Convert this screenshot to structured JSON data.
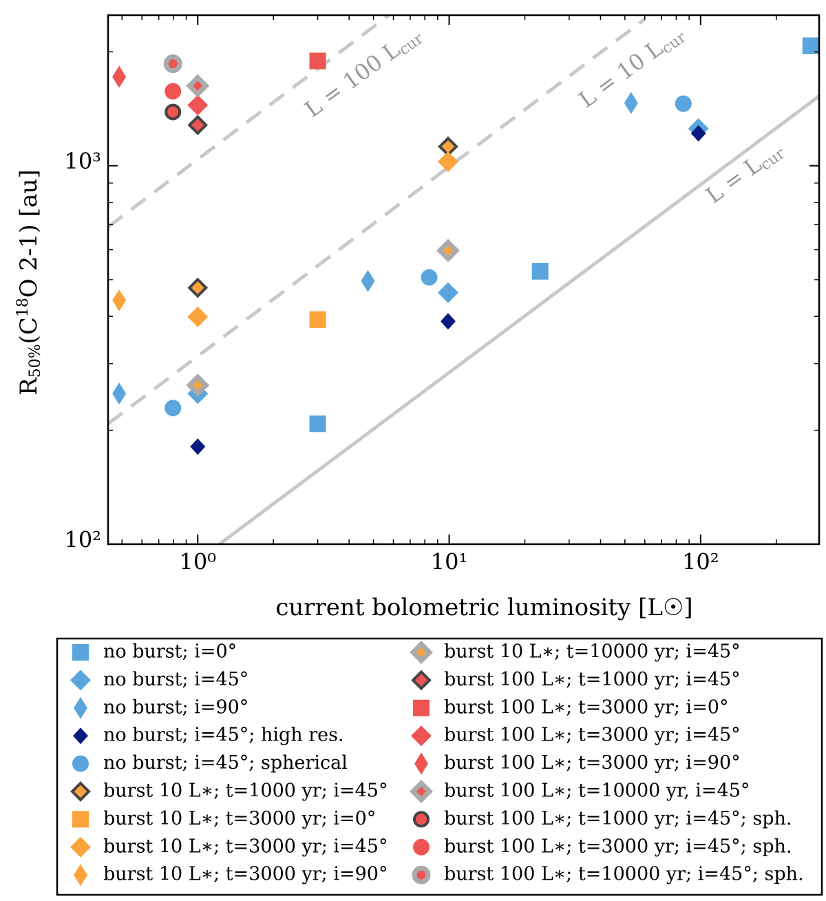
{
  "chart_data": {
    "type": "scatter",
    "xlabel": "current bolometric luminosity [L☉]",
    "ylabel": [
      "R",
      "50%",
      "(C",
      "18",
      "O 2-1) [au]"
    ],
    "xscale": "log",
    "yscale": "log",
    "xlim": [
      0.44,
      296
    ],
    "ylim": [
      100,
      2500
    ],
    "xticks": [
      {
        "value": 1,
        "label": "10⁰"
      },
      {
        "value": 10,
        "label": "10¹"
      },
      {
        "value": 100,
        "label": "10²"
      }
    ],
    "yticks": [
      {
        "value": 100,
        "label": "10²"
      },
      {
        "value": 1000,
        "label": "10³"
      }
    ],
    "legend": "bottom",
    "reference_lines": [
      {
        "label": "L = 100 L",
        "sub": "cur",
        "style": "dashed",
        "color": "#c8c8c8",
        "x": [
          0.44,
          6
        ],
        "values": [
          689,
          2552
        ]
      },
      {
        "label": "L = 10 L",
        "sub": "cur",
        "style": "dashed",
        "color": "#c8c8c8",
        "x": [
          0.44,
          60
        ],
        "values": [
          208,
          2440
        ]
      },
      {
        "label": "L = L",
        "sub": "cur",
        "style": "solid",
        "color": "#c8c8c8",
        "x": [
          1.22,
          296
        ],
        "values": [
          100,
          1528
        ]
      }
    ],
    "series": [
      {
        "name": "no burst; i=0°",
        "marker": "square",
        "color": "#5aa5dd",
        "x": [
          3.0,
          23,
          274
        ],
        "values": [
          208,
          526,
          2075
        ]
      },
      {
        "name": "no burst; i=45°",
        "marker": "diamond",
        "color": "#5aa5dd",
        "x": [
          1,
          9.9,
          98
        ],
        "values": [
          250,
          462,
          1254
        ]
      },
      {
        "name": "no burst; i=90°",
        "marker": "thin_diamond",
        "color": "#5aa5dd",
        "x": [
          0.487,
          4.75,
          52.9
        ],
        "values": [
          250,
          496,
          1465
        ]
      },
      {
        "name": "no burst; i=45°; high res.",
        "marker": "diamond_small",
        "color": "#0b1a80",
        "x": [
          1,
          9.9,
          98
        ],
        "values": [
          181,
          388,
          1218
        ]
      },
      {
        "name": "no burst; i=45°; spherical",
        "marker": "circle",
        "color": "#5aa5dd",
        "x": [
          0.797,
          8.33,
          85.4
        ],
        "values": [
          229,
          507,
          1459
        ]
      },
      {
        "name": "burst 10 L∗; t=1000 yr; i=45°",
        "marker": "diamond",
        "color": "#fba43c",
        "edgecolor": "#444444",
        "edgewidth": 4,
        "x": [
          1,
          9.9
        ],
        "values": [
          476,
          1124
        ]
      },
      {
        "name": "burst 10 L∗; t=3000 yr; i=0°",
        "marker": "square",
        "color": "#fba43c",
        "x": [
          3.0
        ],
        "values": [
          392
        ]
      },
      {
        "name": "burst 10 L∗; t=3000 yr; i=45°",
        "marker": "diamond",
        "color": "#fba43c",
        "x": [
          1,
          9.9
        ],
        "values": [
          399,
          1025
        ]
      },
      {
        "name": "burst 10 L∗; t=3000 yr; i=90°",
        "marker": "thin_diamond",
        "color": "#fba43c",
        "x": [
          0.487
        ],
        "values": [
          441
        ]
      },
      {
        "name": "burst 10 L∗; t=10000 yr; i=45°",
        "marker": "diamond",
        "color": "#fba43c",
        "edgecolor": "#aaaaaa",
        "edgewidth": 7,
        "x": [
          1,
          9.9
        ],
        "values": [
          263,
          597
        ]
      },
      {
        "name": "burst 100 L∗; t=1000 yr; i=45°",
        "marker": "diamond",
        "color": "#ee5452",
        "edgecolor": "#444444",
        "edgewidth": 4,
        "x": [
          1
        ],
        "values": [
          1281
        ]
      },
      {
        "name": "burst 100 L∗; t=3000 yr; i=0°",
        "marker": "square",
        "color": "#ee5452",
        "x": [
          3.0
        ],
        "values": [
          1892
        ]
      },
      {
        "name": "burst 100 L∗; t=3000 yr; i=45°",
        "marker": "diamond",
        "color": "#ee5452",
        "x": [
          1
        ],
        "values": [
          1446
        ]
      },
      {
        "name": "burst 100 L∗; t=3000 yr; i=90°",
        "marker": "thin_diamond",
        "color": "#ee5452",
        "x": [
          0.487
        ],
        "values": [
          1718
        ]
      },
      {
        "name": "burst 100 L∗; t=10000 yr, i=45°",
        "marker": "diamond",
        "color": "#ee5452",
        "edgecolor": "#aaaaaa",
        "edgewidth": 7,
        "x": [
          1
        ],
        "values": [
          1626
        ]
      },
      {
        "name": "burst 100 L∗; t=1000 yr; i=45°; sph.",
        "marker": "circle",
        "color": "#ee5452",
        "edgecolor": "#444444",
        "edgewidth": 4,
        "x": [
          0.797
        ],
        "values": [
          1387
        ]
      },
      {
        "name": "burst 100 L∗; t=3000 yr; i=45°; sph.",
        "marker": "circle",
        "color": "#ee5452",
        "x": [
          0.797
        ],
        "values": [
          1573
        ]
      },
      {
        "name": "burst 100 L∗; t=10000 yr; i=45°; sph.",
        "marker": "circle",
        "color": "#ee5452",
        "edgecolor": "#aaaaaa",
        "edgewidth": 7,
        "x": [
          0.797
        ],
        "values": [
          1860
        ]
      }
    ]
  }
}
